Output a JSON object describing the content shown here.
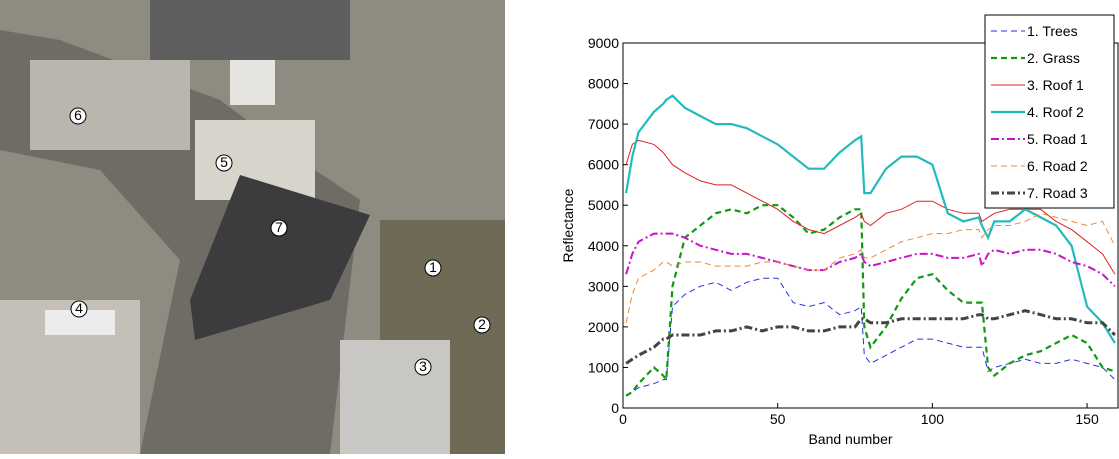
{
  "image": {
    "markers": [
      "1",
      "2",
      "3",
      "4",
      "5",
      "6",
      "7"
    ]
  },
  "chart_data": {
    "type": "line",
    "xlabel": "Band number",
    "ylabel": "Reflectance",
    "xlim": [
      0,
      160
    ],
    "ylim": [
      0,
      9000
    ],
    "xticks": [
      0,
      50,
      100,
      150
    ],
    "yticks": [
      0,
      1000,
      2000,
      3000,
      4000,
      5000,
      6000,
      7000,
      8000,
      9000
    ],
    "legend": "upper right",
    "x": [
      1,
      3,
      5,
      10,
      13,
      14,
      16,
      20,
      25,
      30,
      35,
      40,
      45,
      50,
      55,
      60,
      65,
      70,
      75,
      77,
      78,
      80,
      85,
      90,
      95,
      100,
      105,
      110,
      115,
      116,
      118,
      120,
      125,
      130,
      135,
      140,
      145,
      150,
      155,
      159
    ],
    "series": [
      {
        "name": "1. Trees",
        "color": "#2233dd",
        "linestyle": "--",
        "width": 1,
        "values": [
          300,
          400,
          500,
          600,
          700,
          700,
          2500,
          2800,
          3000,
          3100,
          2900,
          3100,
          3200,
          3200,
          2600,
          2500,
          2600,
          2300,
          2400,
          2500,
          1300,
          1100,
          1300,
          1500,
          1700,
          1700,
          1600,
          1500,
          1500,
          1500,
          900,
          1000,
          1100,
          1200,
          1100,
          1100,
          1200,
          1100,
          1000,
          700
        ]
      },
      {
        "name": "2. Grass",
        "color": "#119911",
        "linestyle": "--",
        "width": 2.2,
        "values": [
          300,
          400,
          600,
          1000,
          800,
          700,
          3000,
          4200,
          4500,
          4800,
          4900,
          4800,
          5000,
          5000,
          4700,
          4300,
          4400,
          4700,
          4900,
          4900,
          2000,
          1500,
          2000,
          2700,
          3200,
          3300,
          2900,
          2600,
          2600,
          2600,
          1000,
          800,
          1100,
          1300,
          1400,
          1600,
          1800,
          1600,
          1000,
          900
        ]
      },
      {
        "name": "3. Roof 1",
        "color": "#dd2222",
        "linestyle": "-",
        "width": 1,
        "values": [
          6000,
          6500,
          6600,
          6500,
          6300,
          6200,
          6000,
          5800,
          5600,
          5500,
          5500,
          5300,
          5100,
          4900,
          4600,
          4400,
          4300,
          4500,
          4700,
          4800,
          4600,
          4500,
          4800,
          4900,
          5100,
          5100,
          4900,
          4800,
          4800,
          4600,
          4700,
          4800,
          4900,
          4900,
          4900,
          4600,
          4400,
          4100,
          3800,
          3300
        ]
      },
      {
        "name": "4. Roof 2",
        "color": "#22bbbb",
        "linestyle": "-",
        "width": 2.2,
        "values": [
          5300,
          6200,
          6800,
          7300,
          7500,
          7600,
          7700,
          7400,
          7200,
          7000,
          7000,
          6900,
          6700,
          6500,
          6200,
          5900,
          5900,
          6300,
          6600,
          6700,
          5300,
          5300,
          5900,
          6200,
          6200,
          6000,
          4800,
          4600,
          4700,
          4500,
          4200,
          4600,
          4600,
          4900,
          4700,
          4500,
          4000,
          2500,
          2100,
          1600
        ]
      },
      {
        "name": "5. Road 1",
        "color": "#cc11cc",
        "linestyle": "-.",
        "width": 2,
        "values": [
          3300,
          3800,
          4100,
          4300,
          4300,
          4300,
          4300,
          4200,
          4000,
          3900,
          3800,
          3800,
          3700,
          3600,
          3500,
          3400,
          3400,
          3600,
          3700,
          3800,
          3600,
          3500,
          3600,
          3700,
          3800,
          3800,
          3700,
          3700,
          3800,
          3500,
          3800,
          3900,
          3800,
          3900,
          3900,
          3800,
          3600,
          3500,
          3300,
          3000
        ]
      },
      {
        "name": "6. Road 2",
        "color": "#ee8833",
        "linestyle": "--",
        "width": 1,
        "values": [
          2100,
          2800,
          3200,
          3400,
          3600,
          3600,
          3500,
          3600,
          3600,
          3500,
          3500,
          3500,
          3600,
          3600,
          3500,
          3400,
          3400,
          3700,
          3800,
          3900,
          3700,
          3700,
          3900,
          4100,
          4200,
          4300,
          4300,
          4400,
          4400,
          4200,
          4400,
          4500,
          4500,
          4600,
          4800,
          4700,
          4600,
          4500,
          4600,
          4000
        ]
      },
      {
        "name": "7. Road 3",
        "color": "#444444",
        "linestyle": "-.",
        "width": 3,
        "values": [
          1100,
          1200,
          1300,
          1500,
          1700,
          1700,
          1800,
          1800,
          1800,
          1900,
          1900,
          2000,
          1900,
          2000,
          2000,
          1900,
          1900,
          2000,
          2000,
          2200,
          2200,
          2100,
          2100,
          2200,
          2200,
          2200,
          2200,
          2200,
          2300,
          2300,
          2200,
          2200,
          2300,
          2400,
          2300,
          2200,
          2200,
          2100,
          2100,
          1800
        ]
      }
    ]
  }
}
